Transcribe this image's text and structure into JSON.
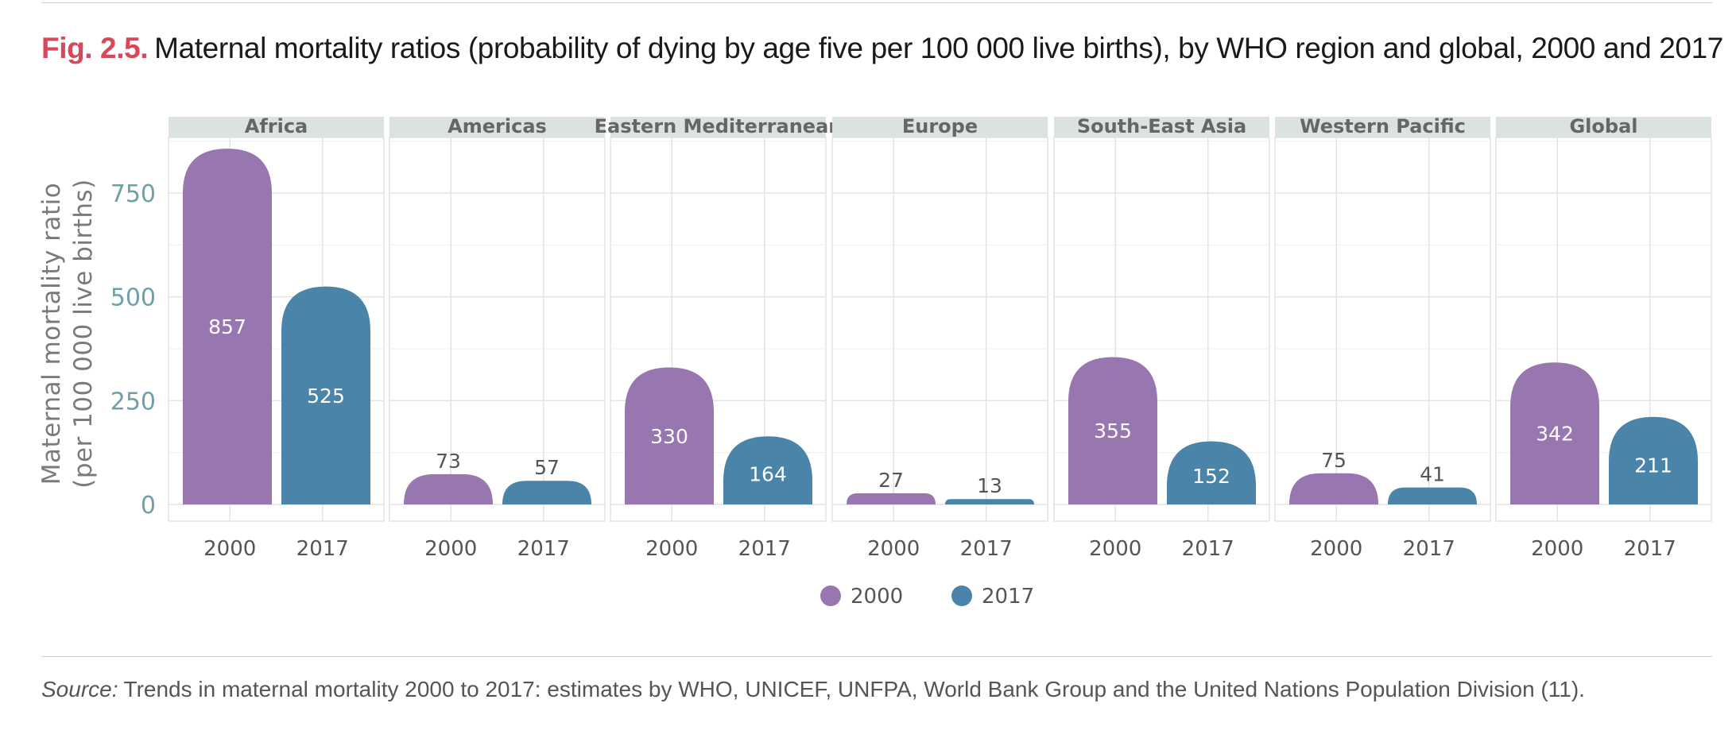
{
  "figure": {
    "label": "Fig. 2.5.",
    "title": "Maternal mortality ratios (probability of dying by age five per 100 000 live births), by WHO region and global, 2000 and 2017",
    "source_label": "Source:",
    "source_text": "Trends in maternal mortality 2000 to 2017: estimates by WHO, UNICEF, UNFPA, World Bank Group and the United Nations Population Division (11)."
  },
  "chart_data": {
    "type": "bar",
    "ylabel_lines": [
      "Maternal mortality ratio",
      "(per 100 000 live births)"
    ],
    "ylim": [
      0,
      875
    ],
    "yticks": [
      0,
      250,
      500,
      750
    ],
    "grid": true,
    "facet_label_position": "top",
    "legend_position": "bottom-center",
    "categories": [
      "2000",
      "2017"
    ],
    "series": [
      {
        "name": "2000",
        "color": "#9876b0"
      },
      {
        "name": "2017",
        "color": "#4a84a8"
      }
    ],
    "panels": [
      {
        "name": "Africa",
        "values": [
          857,
          525
        ]
      },
      {
        "name": "Americas",
        "values": [
          73,
          57
        ]
      },
      {
        "name": "Eastern Mediterranean",
        "values": [
          330,
          164
        ]
      },
      {
        "name": "Europe",
        "values": [
          27,
          13
        ]
      },
      {
        "name": "South-East Asia",
        "values": [
          355,
          152
        ]
      },
      {
        "name": "Western Pacific",
        "values": [
          75,
          41
        ]
      },
      {
        "name": "Global",
        "values": [
          342,
          211
        ]
      }
    ]
  }
}
